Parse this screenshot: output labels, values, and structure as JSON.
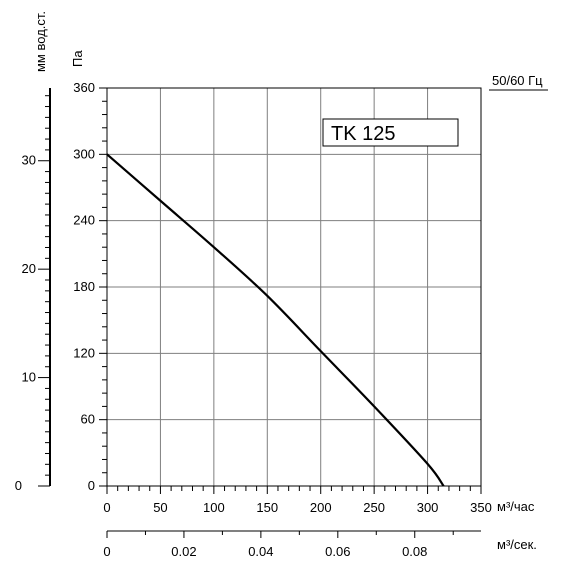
{
  "chart_data": {
    "type": "line",
    "model_label": "TK 125",
    "freq_label": "50/60 Гц",
    "left_unit_label": "мм вод.ст.",
    "pa_unit_label": "Па",
    "xlabel_primary": "м³/час",
    "xlabel_secondary": "м³/сек.",
    "xlim": [
      0,
      350
    ],
    "ylim": [
      0,
      360
    ],
    "x_ticks": [
      0,
      50,
      100,
      150,
      200,
      250,
      300,
      350
    ],
    "x_tick_labels": [
      "0",
      "50",
      "100",
      "150",
      "200",
      "250",
      "300",
      "350"
    ],
    "y_ticks": [
      0,
      60,
      120,
      180,
      240,
      300,
      360
    ],
    "y_tick_labels": [
      "0",
      "60",
      "120",
      "180",
      "240",
      "300",
      "360"
    ],
    "mmwg_ticks": [
      0,
      10,
      20,
      30
    ],
    "mmwg_tick_labels": [
      "0",
      "10",
      "20",
      "30"
    ],
    "sec_ticks": [
      0,
      0.02,
      0.04,
      0.06,
      0.08
    ],
    "sec_tick_labels": [
      "0",
      "0.02",
      "0.04",
      "0.06",
      "0.08"
    ],
    "grid": true,
    "series": [
      {
        "x": [
          0,
          50,
          100,
          150,
          200,
          250,
          300,
          315
        ],
        "y": [
          300,
          258,
          216,
          172,
          122,
          72,
          20,
          0
        ]
      }
    ]
  }
}
